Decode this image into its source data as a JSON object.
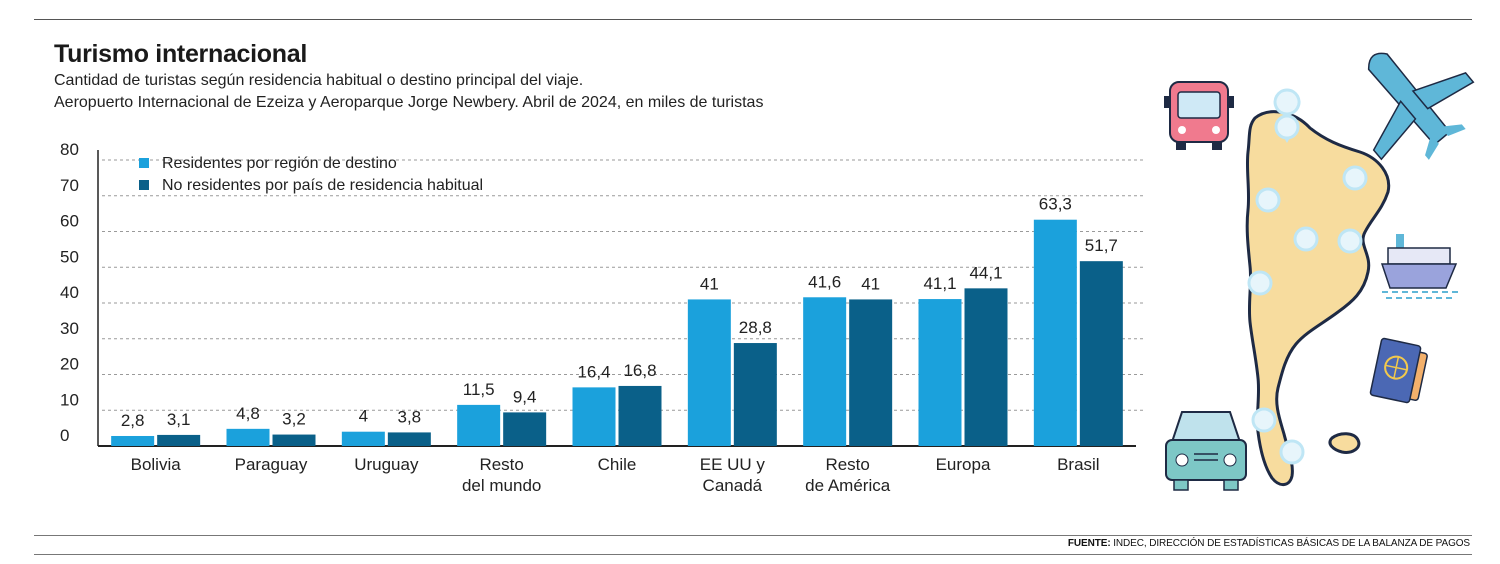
{
  "header": {
    "title": "Turismo internacional",
    "subtitle_line1": "Cantidad de turistas según residencia habitual o destino principal del viaje.",
    "subtitle_line2": "Aeropuerto Internacional de Ezeiza y Aeroparque Jorge Newbery. Abril de 2024, en miles de turistas"
  },
  "source": {
    "label": "FUENTE:",
    "text": " INDEC, DIRECCIÓN DE ESTADÍSTICAS BÁSICAS DE LA BALANZA DE PAGOS"
  },
  "colors": {
    "series1": "#1ba1dc",
    "series2": "#0a6089",
    "grid": "#9a9a9a",
    "axis": "#222222",
    "map": "#f7dc9e",
    "icon_outline": "#1e2a44"
  },
  "chart_data": {
    "type": "bar",
    "title": "Turismo internacional",
    "xlabel": "",
    "ylabel": "",
    "ylim": [
      0,
      80
    ],
    "yticks": [
      "0",
      "10",
      "20",
      "30",
      "40",
      "50",
      "60",
      "70",
      "80"
    ],
    "categories": [
      [
        "Bolivia"
      ],
      [
        "Paraguay"
      ],
      [
        "Uruguay"
      ],
      [
        "Resto",
        "del mundo"
      ],
      [
        "Chile"
      ],
      [
        "EE UU y",
        "Canadá"
      ],
      [
        "Resto",
        "de América"
      ],
      [
        "Europa"
      ],
      [
        "Brasil"
      ]
    ],
    "series": [
      {
        "name": "Residentes por región de destino",
        "values": [
          2.8,
          4.8,
          4,
          11.5,
          16.4,
          41,
          41.6,
          41.1,
          63.3
        ],
        "labels": [
          "2,8",
          "4,8",
          "4",
          "11,5",
          "16,4",
          "41",
          "41,6",
          "41,1",
          "63,3"
        ]
      },
      {
        "name": "No residentes por país de residencia habitual",
        "values": [
          3.1,
          3.2,
          3.8,
          9.4,
          16.8,
          28.8,
          41,
          44.1,
          51.7
        ],
        "labels": [
          "3,1",
          "3,2",
          "3,8",
          "9,4",
          "16,8",
          "28,8",
          "41",
          "44,1",
          "51,7"
        ]
      }
    ],
    "legend": "top-left",
    "grid": true
  }
}
